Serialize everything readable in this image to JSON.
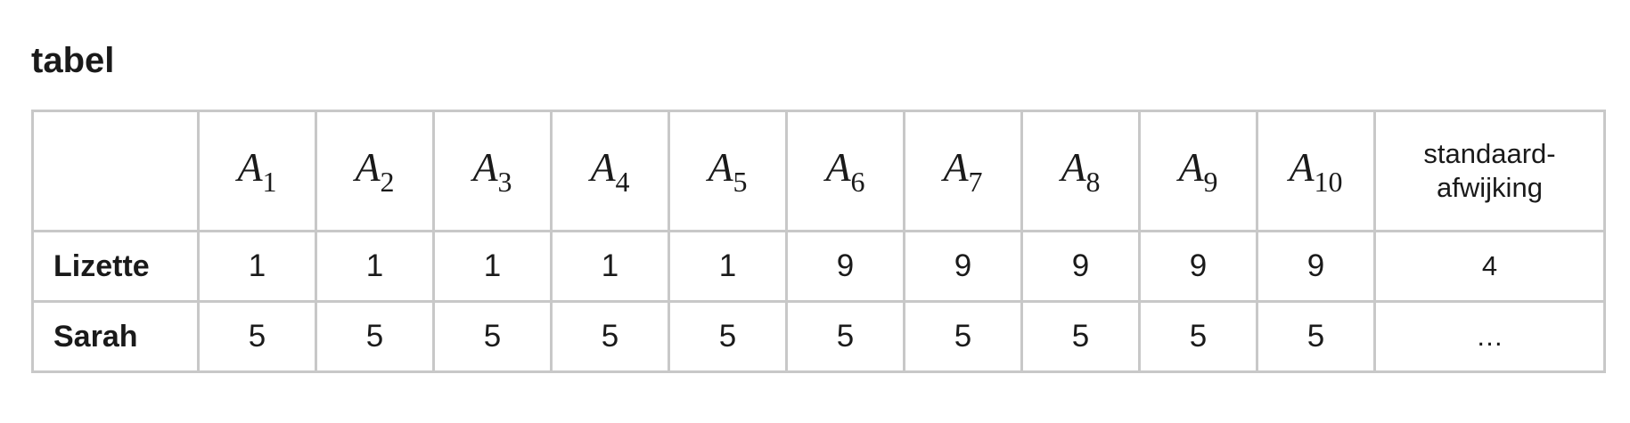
{
  "title": "tabel",
  "columns": [
    {
      "var": "A",
      "sub": "1"
    },
    {
      "var": "A",
      "sub": "2"
    },
    {
      "var": "A",
      "sub": "3"
    },
    {
      "var": "A",
      "sub": "4"
    },
    {
      "var": "A",
      "sub": "5"
    },
    {
      "var": "A",
      "sub": "6"
    },
    {
      "var": "A",
      "sub": "7"
    },
    {
      "var": "A",
      "sub": "8"
    },
    {
      "var": "A",
      "sub": "9"
    },
    {
      "var": "A",
      "sub": "10"
    }
  ],
  "sd_header": [
    "standaard-",
    "afwijking"
  ],
  "rows": [
    {
      "name": "Lizette",
      "values": [
        "1",
        "1",
        "1",
        "1",
        "1",
        "9",
        "9",
        "9",
        "9",
        "9"
      ],
      "sd": "4"
    },
    {
      "name": "Sarah",
      "values": [
        "5",
        "5",
        "5",
        "5",
        "5",
        "5",
        "5",
        "5",
        "5",
        "5"
      ],
      "sd": "…"
    }
  ]
}
